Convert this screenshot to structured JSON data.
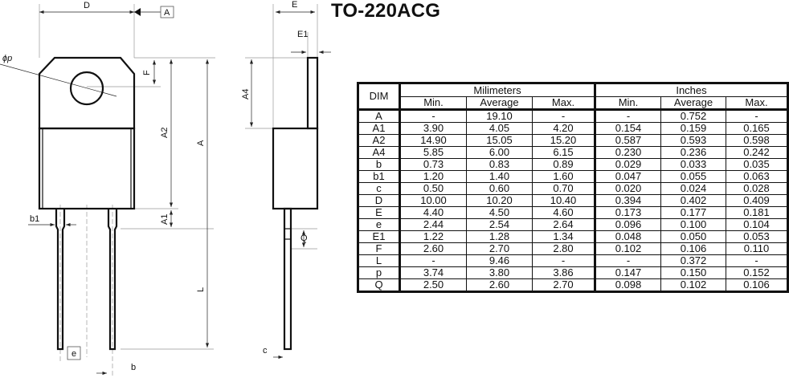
{
  "title": "TO-220ACG",
  "drawing_labels": {
    "D": "D",
    "datum_A": "A",
    "phi_p": "ϕp",
    "F": "F",
    "A2": "A2",
    "A": "A",
    "A1": "A1",
    "L": "L",
    "b1": "b1",
    "e": "e",
    "b": "b",
    "E": "E",
    "E1": "E1",
    "A4": "A4",
    "Q": "Q",
    "c": "c"
  },
  "table": {
    "dim_header": "DIM",
    "group_mm": "Milimeters",
    "group_in": "Inches",
    "sub_headers": [
      "Min.",
      "Average",
      "Max.",
      "Min.",
      "Average",
      "Max."
    ],
    "rows": [
      [
        "A",
        "-",
        "19.10",
        "-",
        "-",
        "0.752",
        "-"
      ],
      [
        "A1",
        "3.90",
        "4.05",
        "4.20",
        "0.154",
        "0.159",
        "0.165"
      ],
      [
        "A2",
        "14.90",
        "15.05",
        "15.20",
        "0.587",
        "0.593",
        "0.598"
      ],
      [
        "A4",
        "5.85",
        "6.00",
        "6.15",
        "0.230",
        "0.236",
        "0.242"
      ],
      [
        "b",
        "0.73",
        "0.83",
        "0.89",
        "0.029",
        "0.033",
        "0.035"
      ],
      [
        "b1",
        "1.20",
        "1.40",
        "1.60",
        "0.047",
        "0.055",
        "0.063"
      ],
      [
        "c",
        "0.50",
        "0.60",
        "0.70",
        "0.020",
        "0.024",
        "0.028"
      ],
      [
        "D",
        "10.00",
        "10.20",
        "10.40",
        "0.394",
        "0.402",
        "0.409"
      ],
      [
        "E",
        "4.40",
        "4.50",
        "4.60",
        "0.173",
        "0.177",
        "0.181"
      ],
      [
        "e",
        "2.44",
        "2.54",
        "2.64",
        "0.096",
        "0.100",
        "0.104"
      ],
      [
        "E1",
        "1.22",
        "1.28",
        "1.34",
        "0.048",
        "0.050",
        "0.053"
      ],
      [
        "F",
        "2.60",
        "2.70",
        "2.80",
        "0.102",
        "0.106",
        "0.110"
      ],
      [
        "L",
        "-",
        "9.46",
        "-",
        "-",
        "0.372",
        "-"
      ],
      [
        "p",
        "3.74",
        "3.80",
        "3.86",
        "0.147",
        "0.150",
        "0.152"
      ],
      [
        "Q",
        "2.50",
        "2.60",
        "2.70",
        "0.098",
        "0.102",
        "0.106"
      ]
    ]
  }
}
